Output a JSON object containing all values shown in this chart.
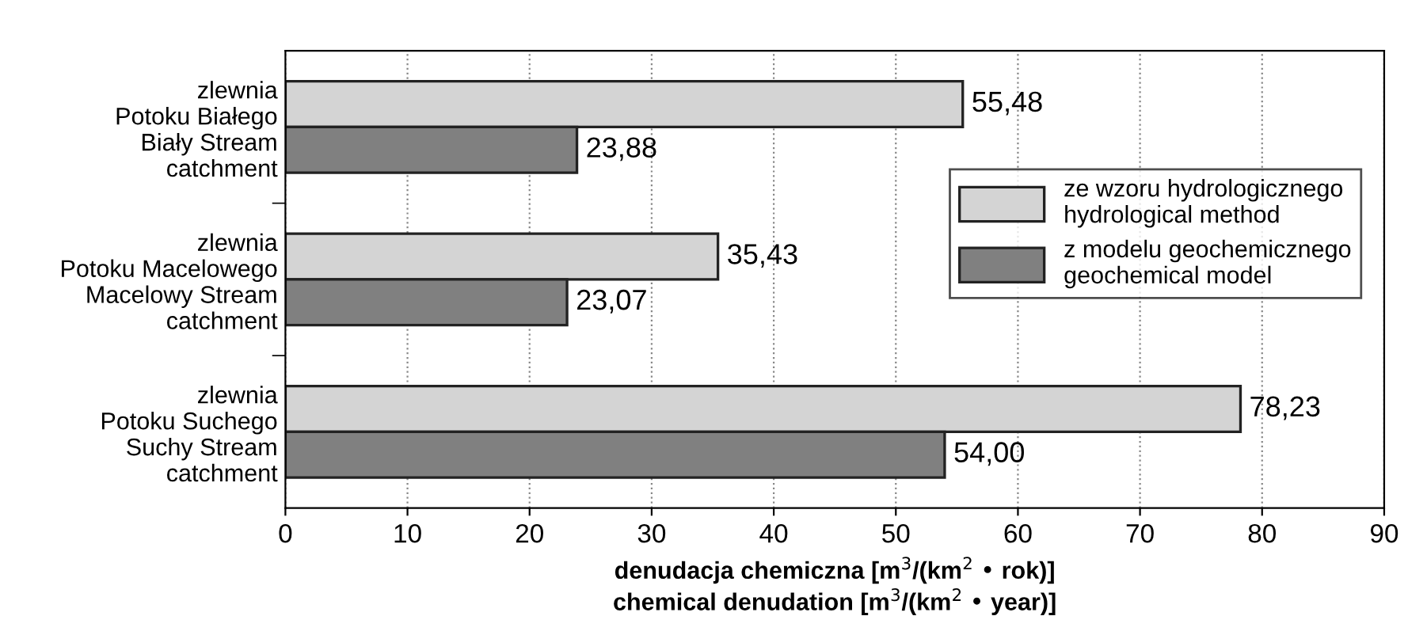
{
  "chart_data": {
    "type": "bar",
    "orientation": "horizontal",
    "categories": [
      "zlewnia\nPotoku Białego\nBiały Stream\ncatchment",
      "zlewnia\nPotoku Macelowego\nMacelowy Stream\ncatchment",
      "zlewnia\nPotoku Suchego\nSuchy Stream\ncatchment"
    ],
    "series": [
      {
        "name": "ze wzoru hydrologicznego\nhydrological method",
        "color": "#d4d4d4",
        "values": [
          55.48,
          35.43,
          78.23
        ],
        "value_labels": [
          "55,48",
          "35,43",
          "78,23"
        ]
      },
      {
        "name": "z modelu geochemicznego\ngeochemical model",
        "color": "#808080",
        "values": [
          23.88,
          23.07,
          54.0
        ],
        "value_labels": [
          "23,88",
          "23,07",
          "54,00"
        ]
      }
    ],
    "xlabel": "denudacja chemiczna [m$^{3}$/(km$^{2}$ • rok)]\nchemical denudation [m$^{3}$/(km$^{2}$ • year)]",
    "xlim": [
      0,
      90
    ],
    "xticks": [
      0,
      10,
      20,
      30,
      40,
      50,
      60,
      70,
      80,
      90
    ],
    "grid": "x",
    "legend": "right"
  }
}
